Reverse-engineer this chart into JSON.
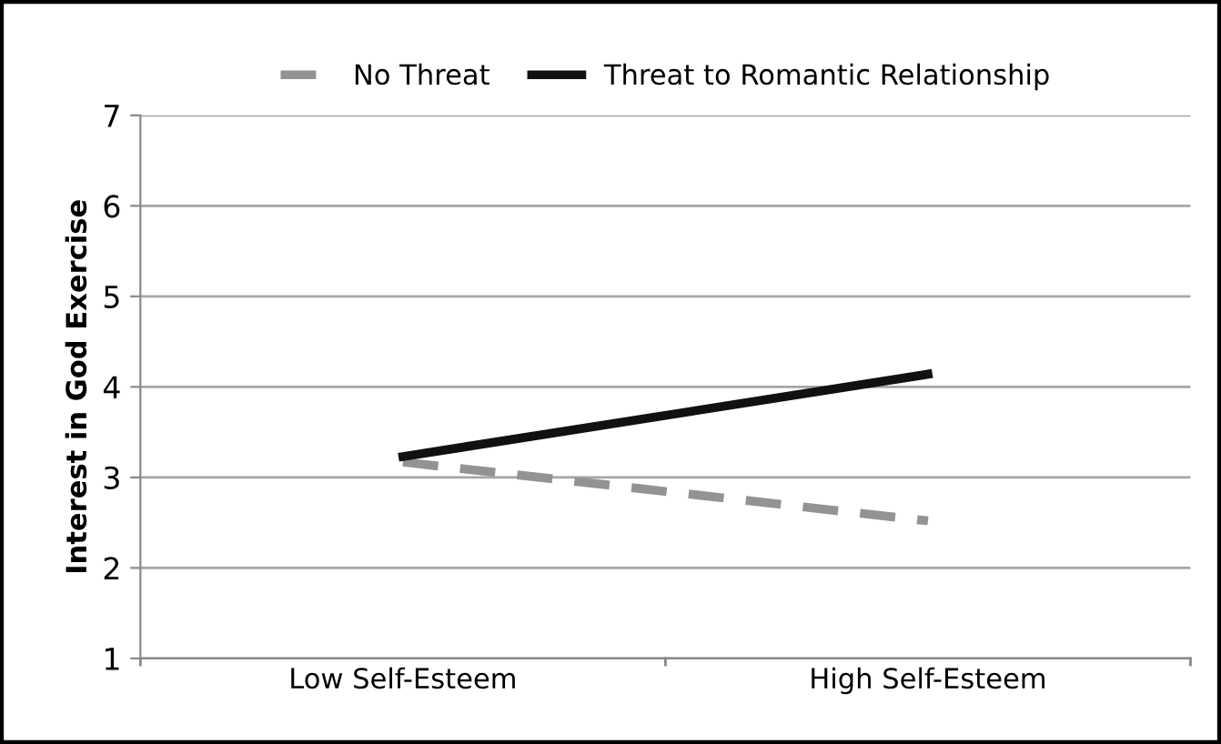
{
  "chart_data": {
    "type": "line",
    "ylabel": "Interest in God Exercise",
    "categories": [
      "Low Self-Esteem",
      "High Self-Esteem"
    ],
    "series": [
      {
        "name": "No Threat",
        "color": "#939393",
        "values": [
          3.17,
          2.52
        ],
        "line_style": "dashed"
      },
      {
        "name": "Threat to Romantic Relationship",
        "color": "#111111",
        "values": [
          3.23,
          4.14
        ],
        "line_style": "solid"
      }
    ],
    "ylim": [
      1,
      7
    ],
    "yticks": [
      1,
      2,
      3,
      4,
      5,
      6,
      7
    ],
    "grid": "y",
    "legend": "top",
    "marker": "none"
  }
}
